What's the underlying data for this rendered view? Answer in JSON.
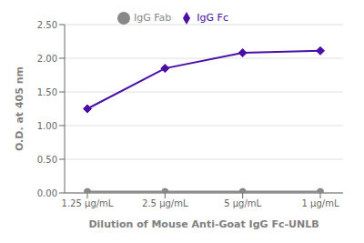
{
  "chart_data": {
    "type": "line",
    "categories": [
      "1.25 μg/mL",
      "2.5 μg/mL",
      "5 μg/mL",
      "1 μg/mL"
    ],
    "series": [
      {
        "name": "IgG Fc",
        "color": "#4b0fa8",
        "marker": "diamond",
        "values": [
          1.25,
          1.85,
          2.08,
          2.11
        ]
      },
      {
        "name": "IgG Fab",
        "color": "#888888",
        "marker": "circle",
        "values": [
          0.02,
          0.02,
          0.02,
          0.02
        ]
      }
    ],
    "xlabel": "Dilution of Mouse Anti-Goat IgG Fc-UNLB",
    "ylabel": "O.D. at 405 nm",
    "ylim": [
      0.0,
      2.5
    ],
    "yticks": [
      {
        "value": 0.0,
        "label": "0.00"
      },
      {
        "value": 0.5,
        "label": "0.50"
      },
      {
        "value": 1.0,
        "label": "1.00"
      },
      {
        "value": 1.5,
        "label": "1.50"
      },
      {
        "value": 2.0,
        "label": "2.00"
      },
      {
        "value": 2.5,
        "label": "2.50"
      }
    ],
    "grid": true,
    "legend": "top"
  }
}
